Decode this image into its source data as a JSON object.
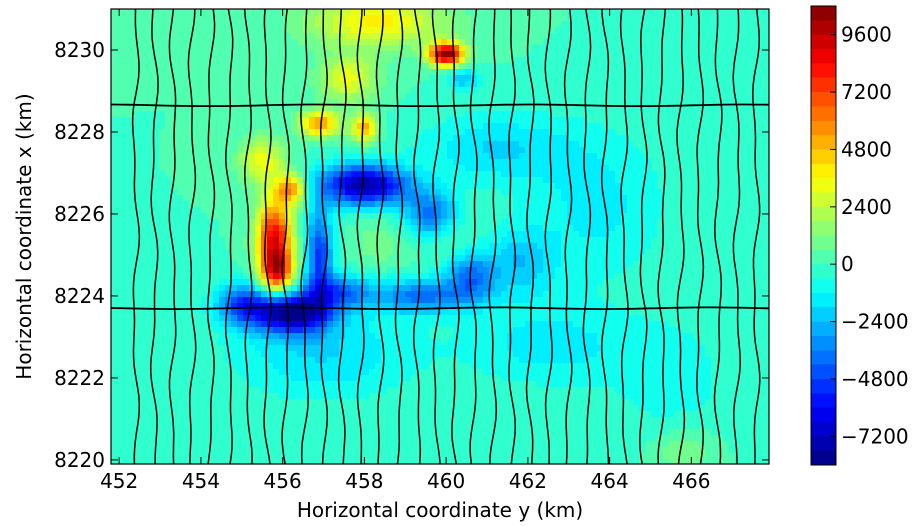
{
  "chart_data": {
    "type": "heatmap",
    "title": "",
    "xlabel": "Horizontal coordinate y (km)",
    "ylabel": "Horizontal coordinate x (km)",
    "xlim": [
      451.8,
      467.9
    ],
    "ylim": [
      8219.9,
      8231.0
    ],
    "xticks": [
      "452",
      "454",
      "456",
      "458",
      "460",
      "462",
      "464",
      "466"
    ],
    "yticks": [
      "8220",
      "8222",
      "8224",
      "8226",
      "8228",
      "8230"
    ],
    "colorbar": {
      "range": [
        -8400,
        10800
      ],
      "ticks": [
        "9600",
        "7200",
        "4800",
        "2400",
        "0",
        "−2400",
        "−4800",
        "−7200"
      ],
      "colormap": "jet"
    },
    "background_value": 0,
    "anomalies": [
      {
        "x": 455.8,
        "y": 8225.3,
        "sx": 0.3,
        "sy": 0.75,
        "value": 9000
      },
      {
        "x": 455.9,
        "y": 8224.6,
        "sx": 0.25,
        "sy": 0.3,
        "value": 5000
      },
      {
        "x": 456.2,
        "y": 8226.6,
        "sx": 0.25,
        "sy": 0.25,
        "value": 5500
      },
      {
        "x": 455.5,
        "y": 8227.3,
        "sx": 0.4,
        "sy": 0.4,
        "value": 3200
      },
      {
        "x": 456.9,
        "y": 8228.2,
        "sx": 0.35,
        "sy": 0.22,
        "value": 5500
      },
      {
        "x": 458.0,
        "y": 8228.1,
        "sx": 0.22,
        "sy": 0.25,
        "value": 5000
      },
      {
        "x": 457.6,
        "y": 8229.3,
        "sx": 0.5,
        "sy": 0.4,
        "value": 3200
      },
      {
        "x": 458.3,
        "y": 8230.7,
        "sx": 1.2,
        "sy": 0.45,
        "value": 3800
      },
      {
        "x": 460.0,
        "y": 8229.9,
        "sx": 0.3,
        "sy": 0.2,
        "value": 10500
      },
      {
        "x": 460.4,
        "y": 8229.3,
        "sx": 0.3,
        "sy": 0.2,
        "value": -2200
      },
      {
        "x": 456.2,
        "y": 8223.6,
        "sx": 0.65,
        "sy": 0.35,
        "value": -8200
      },
      {
        "x": 455.0,
        "y": 8223.8,
        "sx": 0.45,
        "sy": 0.35,
        "value": -4200
      },
      {
        "x": 458.0,
        "y": 8226.7,
        "sx": 0.75,
        "sy": 0.35,
        "value": -7800
      },
      {
        "x": 459.6,
        "y": 8226.0,
        "sx": 0.45,
        "sy": 0.4,
        "value": -3800
      },
      {
        "x": 456.9,
        "y": 8225.0,
        "sx": 0.22,
        "sy": 0.8,
        "value": -5000
      },
      {
        "x": 457.4,
        "y": 8224.1,
        "sx": 0.5,
        "sy": 0.3,
        "value": -3600
      },
      {
        "x": 459.4,
        "y": 8224.0,
        "sx": 0.9,
        "sy": 0.3,
        "value": -3800
      },
      {
        "x": 460.6,
        "y": 8224.5,
        "sx": 0.4,
        "sy": 0.4,
        "value": -3500
      },
      {
        "x": 461.8,
        "y": 8224.8,
        "sx": 0.6,
        "sy": 0.6,
        "value": -2200
      },
      {
        "x": 461.2,
        "y": 8227.6,
        "sx": 1.3,
        "sy": 0.6,
        "value": -1800
      },
      {
        "x": 463.7,
        "y": 8226.2,
        "sx": 1.2,
        "sy": 1.3,
        "value": -1400
      },
      {
        "x": 457.0,
        "y": 8222.6,
        "sx": 1.6,
        "sy": 0.8,
        "value": -1800
      },
      {
        "x": 462.5,
        "y": 8222.8,
        "sx": 1.4,
        "sy": 0.7,
        "value": -1500
      },
      {
        "x": 465.5,
        "y": 8222.0,
        "sx": 1.0,
        "sy": 1.0,
        "value": -1000
      },
      {
        "x": 458.4,
        "y": 8225.3,
        "sx": 0.5,
        "sy": 0.5,
        "value": 900
      },
      {
        "x": 460.2,
        "y": 8225.4,
        "sx": 0.35,
        "sy": 0.35,
        "value": 500
      },
      {
        "x": 465.8,
        "y": 8220.2,
        "sx": 0.5,
        "sy": 0.4,
        "value": 1200
      }
    ],
    "flight_lines": {
      "north_south_x_start": 452.4,
      "north_south_spacing": 0.46,
      "north_south_count": 34,
      "east_west_y": [
        8228.65,
        8223.7
      ]
    }
  }
}
